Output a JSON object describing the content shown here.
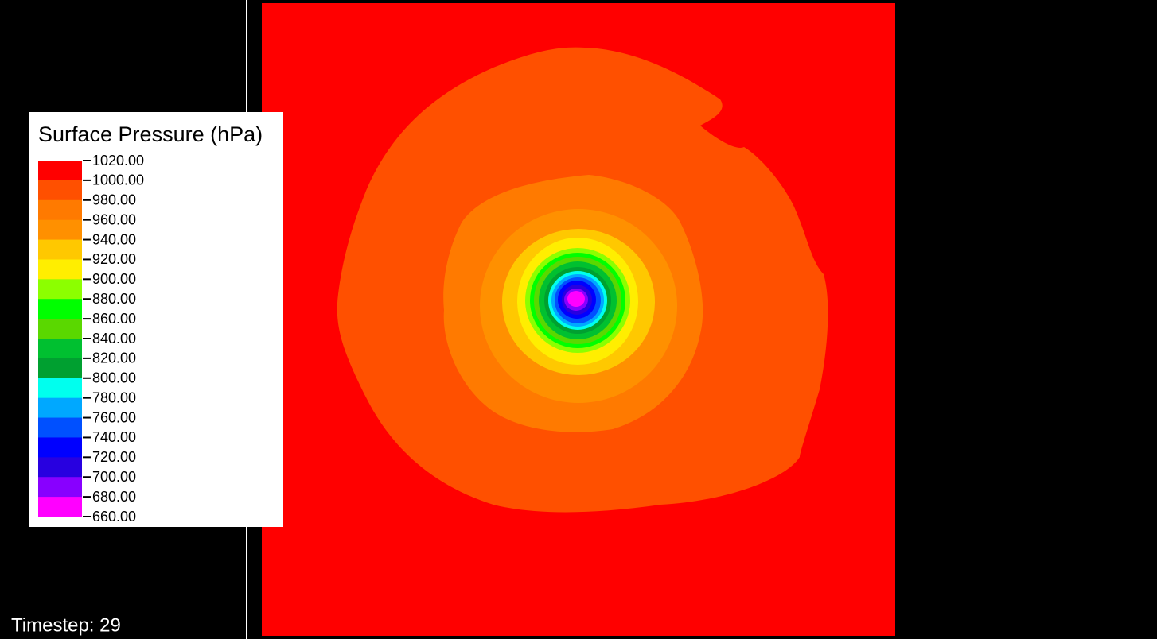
{
  "legend": {
    "title": "Surface Pressure (hPa)",
    "ticks": [
      {
        "value": 1020,
        "label": "1020.00"
      },
      {
        "value": 1000,
        "label": "1000.00"
      },
      {
        "value": 980,
        "label": "980.00"
      },
      {
        "value": 960,
        "label": "960.00"
      },
      {
        "value": 940,
        "label": "940.00"
      },
      {
        "value": 920,
        "label": "920.00"
      },
      {
        "value": 900,
        "label": "900.00"
      },
      {
        "value": 880,
        "label": "880.00"
      },
      {
        "value": 860,
        "label": "860.00"
      },
      {
        "value": 840,
        "label": "840.00"
      },
      {
        "value": 820,
        "label": "820.00"
      },
      {
        "value": 800,
        "label": "800.00"
      },
      {
        "value": 780,
        "label": "780.00"
      },
      {
        "value": 760,
        "label": "760.00"
      },
      {
        "value": 740,
        "label": "740.00"
      },
      {
        "value": 720,
        "label": "720.00"
      },
      {
        "value": 700,
        "label": "700.00"
      },
      {
        "value": 680,
        "label": "680.00"
      },
      {
        "value": 660,
        "label": "660.00"
      }
    ],
    "colors": [
      "#ff0000",
      "#ff5000",
      "#ff7a00",
      "#ff9000",
      "#ffc800",
      "#ffee00",
      "#8cff00",
      "#00ff00",
      "#5ad800",
      "#00c030",
      "#00a030",
      "#00ffee",
      "#00a8ff",
      "#0050ff",
      "#0000ff",
      "#2800e0",
      "#8800ff",
      "#ff00ff"
    ]
  },
  "timestep": "Timestep: 29"
}
